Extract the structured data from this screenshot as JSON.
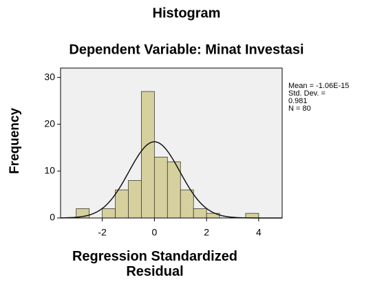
{
  "chart_data": {
    "type": "histogram",
    "title": "Histogram",
    "subtitle": "Dependent Variable: Minat Investasi",
    "xlabel": "Regression Standardized Residual",
    "ylabel": "Frequency",
    "bins": [
      -3,
      -2.5,
      -2,
      -1.5,
      -1,
      -0.5,
      0,
      0.5,
      1,
      1.5,
      2,
      2.5,
      3,
      3.5,
      4
    ],
    "counts": [
      2,
      0,
      2,
      6,
      8,
      27,
      13,
      12,
      6,
      2,
      1,
      0,
      0,
      1
    ],
    "color": "#d6d09f",
    "xlim": [
      -3.6,
      4.9
    ],
    "xticks": [
      -2,
      0,
      2,
      4
    ],
    "ylim": [
      0,
      32
    ],
    "yticks": [
      0,
      10,
      20,
      30
    ],
    "normal_curve": {
      "mean": -1.06e-15,
      "std_dev": 0.981,
      "n": 80,
      "labels": [
        "Mean = -1.06E-15",
        "Std. Dev. =",
        "0.981",
        "N = 80"
      ]
    }
  }
}
